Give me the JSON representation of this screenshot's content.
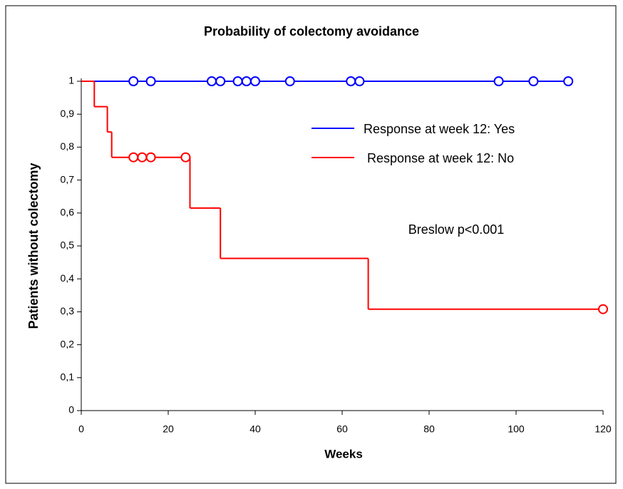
{
  "chart_data": {
    "type": "kaplan-meier",
    "title": "Probability of colectomy avoidance",
    "x_label": "Weeks",
    "y_label": "Patients without colectomy",
    "annotation": "Breslow  p<0.001",
    "legend": "upper right",
    "xlim": [
      0,
      120
    ],
    "ylim": [
      0,
      1
    ],
    "xticks": [
      0,
      20,
      40,
      60,
      80,
      100,
      120
    ],
    "yticks": [
      0,
      {
        "value": 0.1,
        "label": "0,1"
      },
      {
        "value": 0.2,
        "label": "0,2"
      },
      {
        "value": 0.3,
        "label": "0,3"
      },
      {
        "value": 0.4,
        "label": "0,4"
      },
      {
        "value": 0.5,
        "label": "0,5"
      },
      {
        "value": 0.6,
        "label": "0,6"
      },
      {
        "value": 0.7,
        "label": "0,7"
      },
      {
        "value": 0.8,
        "label": "0,8"
      },
      {
        "value": 0.9,
        "label": "0,9"
      },
      1
    ],
    "series": [
      {
        "name": "Response at week 12: Yes",
        "color": "#0000ff",
        "x": [
          0,
          112
        ],
        "values": [
          1,
          1
        ],
        "censored_x": [
          12,
          16,
          30,
          32,
          36,
          38,
          40,
          48,
          62,
          64,
          96,
          104,
          112
        ],
        "censored_values": [
          1,
          1,
          1,
          1,
          1,
          1,
          1,
          1,
          1,
          1,
          1,
          1,
          1
        ]
      },
      {
        "name": "Response at week 12: No",
        "color": "#ff0000",
        "x": [
          0,
          3,
          6,
          7,
          25,
          32,
          66,
          120
        ],
        "values": [
          1,
          0.923,
          0.846,
          0.769,
          0.615,
          0.462,
          0.308,
          0.308
        ],
        "censored_x": [
          12,
          14,
          16,
          24,
          120
        ],
        "censored_values": [
          0.769,
          0.769,
          0.769,
          0.769,
          0.308
        ]
      }
    ]
  }
}
